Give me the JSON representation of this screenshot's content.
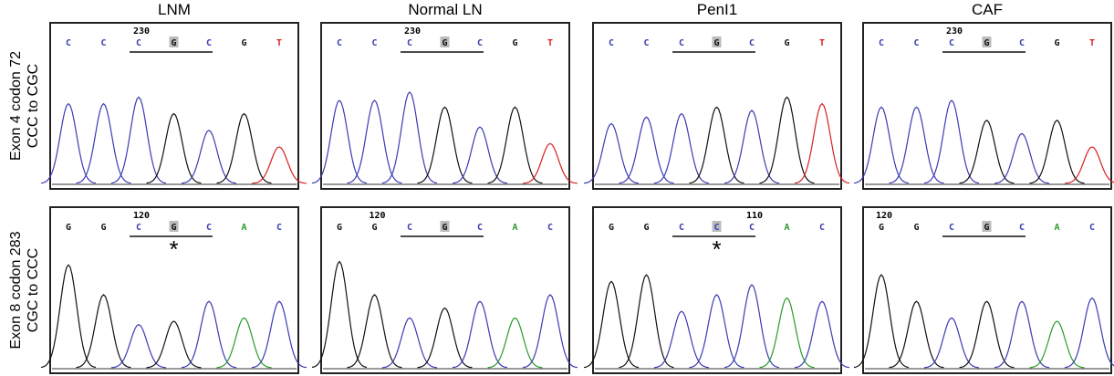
{
  "columns": [
    "LNM",
    "Normal LN",
    "PenI1",
    "CAF"
  ],
  "rows": [
    {
      "label": [
        "Exon 4 codon 72",
        "CCC to CGC"
      ],
      "panels": [
        {
          "bases": [
            "C",
            "C",
            "C",
            "G",
            "C",
            "G",
            "T"
          ],
          "position": "230"
        },
        {
          "bases": [
            "C",
            "C",
            "C",
            "G",
            "C",
            "G",
            "T"
          ],
          "position": "230"
        },
        {
          "bases": [
            "C",
            "C",
            "C",
            "G",
            "C",
            "G",
            "T"
          ]
        },
        {
          "bases": [
            "C",
            "C",
            "C",
            "G",
            "C",
            "G",
            "T"
          ],
          "position": "230"
        }
      ]
    },
    {
      "label": [
        "Exon 8 codon 283",
        "CGC to CCC"
      ],
      "panels": [
        {
          "bases": [
            "G",
            "G",
            "C",
            "G",
            "C",
            "A",
            "C"
          ],
          "position": "120",
          "marker": "*"
        },
        {
          "bases": [
            "G",
            "G",
            "C",
            "G",
            "C",
            "A",
            "C"
          ],
          "position": "120"
        },
        {
          "bases": [
            "G",
            "G",
            "C",
            "C",
            "C",
            "A",
            "C"
          ],
          "position": "110",
          "marker": "*"
        },
        {
          "bases": [
            "G",
            "G",
            "C",
            "G",
            "C",
            "A",
            "C"
          ],
          "position": "120"
        }
      ]
    }
  ]
}
